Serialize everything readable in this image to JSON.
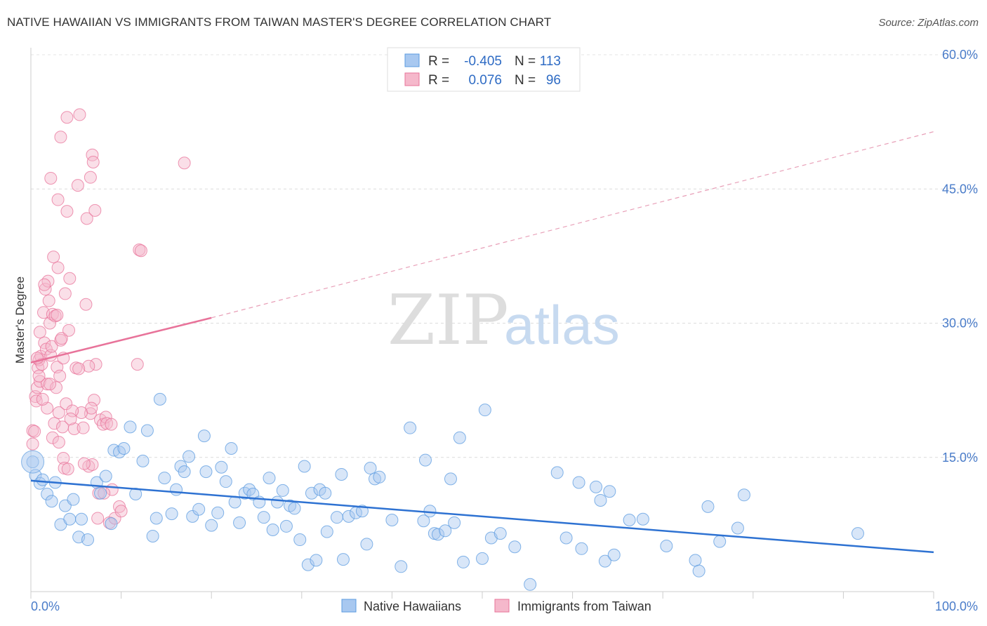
{
  "title": "NATIVE HAWAIIAN VS IMMIGRANTS FROM TAIWAN MASTER'S DEGREE CORRELATION CHART",
  "source": "Source: ZipAtlas.com",
  "watermark": {
    "zip": "ZIP",
    "atlas": "atlas"
  },
  "legend": {
    "rows": [
      {
        "r_label": "R =",
        "r_value": "-0.405",
        "n_label": "N =",
        "n_value": "113",
        "color": "#a8c8f0"
      },
      {
        "r_label": "R =",
        "r_value": "0.076",
        "n_label": "N =",
        "n_value": "96",
        "color": "#f5b8cb"
      }
    ]
  },
  "bottom_legend": [
    {
      "label": "Native Hawaiians",
      "color": "#a8c8f0"
    },
    {
      "label": "Immigrants from Taiwan",
      "color": "#f5b8cb"
    }
  ],
  "chart_data": {
    "type": "scatter",
    "title": "NATIVE HAWAIIAN VS IMMIGRANTS FROM TAIWAN MASTER'S DEGREE CORRELATION CHART",
    "xlabel": "",
    "ylabel": "Master's Degree",
    "xlim": [
      0,
      100
    ],
    "ylim": [
      0,
      60
    ],
    "x_tick_labels": [
      "0.0%",
      "100.0%"
    ],
    "y_ticks": [
      15,
      30,
      45,
      60
    ],
    "y_tick_labels": [
      "15.0%",
      "30.0%",
      "45.0%",
      "60.0%"
    ],
    "grid": true,
    "legend_position": "top-center",
    "series": [
      {
        "name": "Native Hawaiians",
        "color": "#5b9be0",
        "fill": "#a8c8f0",
        "r": -0.405,
        "n": 113,
        "trend": {
          "x": [
            0,
            100
          ],
          "y": [
            12.4,
            4.4
          ],
          "dashed_from": null
        },
        "points": [
          [
            0.2,
            14.5
          ],
          [
            0.5,
            13.0
          ],
          [
            1.0,
            12.1
          ],
          [
            1.3,
            12.5
          ],
          [
            1.8,
            10.9
          ],
          [
            2.3,
            10.1
          ],
          [
            2.7,
            12.2
          ],
          [
            3.3,
            7.5
          ],
          [
            3.8,
            9.6
          ],
          [
            4.3,
            8.1
          ],
          [
            4.7,
            10.3
          ],
          [
            5.3,
            6.1
          ],
          [
            5.6,
            8.1
          ],
          [
            6.3,
            5.8
          ],
          [
            7.3,
            12.2
          ],
          [
            7.7,
            11.0
          ],
          [
            8.3,
            12.9
          ],
          [
            8.9,
            7.6
          ],
          [
            9.2,
            15.8
          ],
          [
            9.8,
            15.6
          ],
          [
            10.3,
            16.0
          ],
          [
            11.0,
            18.4
          ],
          [
            11.6,
            10.9
          ],
          [
            12.4,
            14.6
          ],
          [
            12.9,
            18.0
          ],
          [
            13.5,
            6.2
          ],
          [
            13.9,
            8.2
          ],
          [
            14.3,
            21.5
          ],
          [
            14.8,
            12.7
          ],
          [
            15.6,
            8.7
          ],
          [
            16.1,
            11.4
          ],
          [
            16.6,
            14.0
          ],
          [
            17.0,
            13.4
          ],
          [
            17.5,
            15.1
          ],
          [
            17.9,
            8.4
          ],
          [
            18.6,
            9.2
          ],
          [
            19.2,
            17.4
          ],
          [
            19.4,
            13.4
          ],
          [
            20.0,
            7.4
          ],
          [
            20.7,
            8.8
          ],
          [
            21.1,
            13.9
          ],
          [
            21.6,
            12.3
          ],
          [
            22.2,
            16.0
          ],
          [
            22.6,
            10.0
          ],
          [
            23.1,
            7.7
          ],
          [
            23.7,
            11.0
          ],
          [
            24.2,
            11.4
          ],
          [
            24.6,
            10.9
          ],
          [
            25.3,
            10.0
          ],
          [
            25.8,
            8.3
          ],
          [
            26.4,
            12.7
          ],
          [
            26.8,
            6.9
          ],
          [
            27.3,
            10.0
          ],
          [
            27.9,
            11.3
          ],
          [
            28.3,
            7.3
          ],
          [
            28.7,
            9.6
          ],
          [
            29.2,
            9.3
          ],
          [
            29.8,
            5.8
          ],
          [
            30.3,
            14.0
          ],
          [
            30.7,
            3.0
          ],
          [
            31.1,
            11.0
          ],
          [
            31.6,
            3.5
          ],
          [
            32.0,
            11.4
          ],
          [
            32.6,
            11.0
          ],
          [
            32.8,
            6.7
          ],
          [
            33.9,
            8.3
          ],
          [
            34.4,
            13.1
          ],
          [
            34.6,
            3.6
          ],
          [
            35.2,
            8.4
          ],
          [
            36.0,
            8.8
          ],
          [
            36.7,
            9.0
          ],
          [
            37.2,
            5.3
          ],
          [
            37.6,
            13.8
          ],
          [
            38.1,
            12.6
          ],
          [
            38.6,
            12.8
          ],
          [
            40.0,
            8.0
          ],
          [
            41.0,
            2.8
          ],
          [
            42.0,
            18.3
          ],
          [
            43.5,
            7.9
          ],
          [
            43.7,
            14.7
          ],
          [
            44.2,
            9.0
          ],
          [
            44.7,
            6.5
          ],
          [
            45.1,
            6.4
          ],
          [
            45.9,
            6.8
          ],
          [
            46.5,
            12.6
          ],
          [
            46.9,
            7.7
          ],
          [
            47.5,
            17.2
          ],
          [
            47.9,
            3.3
          ],
          [
            50.0,
            3.7
          ],
          [
            50.3,
            20.3
          ],
          [
            51.0,
            6.0
          ],
          [
            52.0,
            6.5
          ],
          [
            53.6,
            5.0
          ],
          [
            55.3,
            0.8
          ],
          [
            58.3,
            13.3
          ],
          [
            59.3,
            6.0
          ],
          [
            60.7,
            12.2
          ],
          [
            61.0,
            4.8
          ],
          [
            62.6,
            11.7
          ],
          [
            63.1,
            10.2
          ],
          [
            63.6,
            3.4
          ],
          [
            64.1,
            11.2
          ],
          [
            64.6,
            4.1
          ],
          [
            66.3,
            8.0
          ],
          [
            67.8,
            8.1
          ],
          [
            70.4,
            5.1
          ],
          [
            73.6,
            3.5
          ],
          [
            74.0,
            2.3
          ],
          [
            76.3,
            5.6
          ],
          [
            78.3,
            7.1
          ],
          [
            79.0,
            10.8
          ],
          [
            91.6,
            6.5
          ],
          [
            75.0,
            9.5
          ]
        ]
      },
      {
        "name": "Immigrants from Taiwan",
        "color": "#e8739a",
        "fill": "#f5b8cb",
        "r": 0.076,
        "n": 96,
        "trend": {
          "x": [
            0,
            20,
            100
          ],
          "y": [
            25.6,
            30.6,
            51.4
          ],
          "dashed_from": 20
        },
        "points": [
          [
            0.2,
            18.0
          ],
          [
            0.2,
            16.5
          ],
          [
            0.4,
            17.9
          ],
          [
            0.5,
            21.8
          ],
          [
            0.6,
            21.3
          ],
          [
            0.7,
            22.8
          ],
          [
            0.8,
            25.0
          ],
          [
            0.9,
            25.9
          ],
          [
            1.0,
            23.5
          ],
          [
            1.1,
            26.3
          ],
          [
            1.2,
            25.4
          ],
          [
            1.4,
            31.2
          ],
          [
            1.5,
            27.8
          ],
          [
            1.6,
            33.8
          ],
          [
            1.7,
            27.1
          ],
          [
            1.8,
            23.2
          ],
          [
            1.8,
            20.5
          ],
          [
            1.9,
            34.7
          ],
          [
            2.0,
            32.5
          ],
          [
            2.1,
            30.0
          ],
          [
            2.2,
            26.4
          ],
          [
            2.3,
            27.4
          ],
          [
            2.4,
            31.0
          ],
          [
            2.5,
            37.4
          ],
          [
            2.6,
            18.8
          ],
          [
            2.7,
            30.8
          ],
          [
            2.8,
            22.8
          ],
          [
            2.9,
            25.1
          ],
          [
            3.0,
            36.2
          ],
          [
            3.1,
            20.0
          ],
          [
            3.2,
            24.1
          ],
          [
            3.3,
            28.1
          ],
          [
            3.4,
            28.3
          ],
          [
            3.5,
            18.4
          ],
          [
            3.6,
            14.9
          ],
          [
            3.7,
            13.8
          ],
          [
            3.8,
            33.3
          ],
          [
            3.9,
            21.0
          ],
          [
            4.0,
            42.5
          ],
          [
            4.1,
            13.7
          ],
          [
            4.2,
            29.2
          ],
          [
            4.3,
            35.0
          ],
          [
            2.2,
            46.2
          ],
          [
            3.0,
            43.8
          ],
          [
            3.3,
            50.8
          ],
          [
            4.0,
            53.0
          ],
          [
            5.2,
            45.4
          ],
          [
            5.4,
            53.3
          ],
          [
            6.1,
            32.1
          ],
          [
            6.4,
            14.0
          ],
          [
            6.6,
            19.9
          ],
          [
            6.8,
            14.2
          ],
          [
            7.0,
            21.4
          ],
          [
            7.2,
            25.4
          ],
          [
            7.5,
            11.0
          ],
          [
            7.7,
            19.2
          ],
          [
            8.0,
            18.7
          ],
          [
            8.3,
            19.5
          ],
          [
            6.4,
            25.2
          ],
          [
            6.7,
            20.5
          ],
          [
            5.0,
            25.0
          ],
          [
            5.6,
            20.0
          ],
          [
            5.9,
            14.3
          ],
          [
            4.6,
            20.2
          ],
          [
            4.8,
            18.2
          ],
          [
            6.2,
            41.7
          ],
          [
            6.6,
            46.3
          ],
          [
            6.8,
            48.8
          ],
          [
            6.9,
            48.0
          ],
          [
            7.1,
            42.6
          ],
          [
            8.4,
            18.8
          ],
          [
            8.7,
            7.7
          ],
          [
            9.0,
            11.4
          ],
          [
            9.3,
            8.2
          ],
          [
            9.8,
            9.5
          ],
          [
            10.0,
            9.0
          ],
          [
            11.8,
            25.4
          ],
          [
            12.0,
            38.2
          ],
          [
            12.2,
            38.1
          ],
          [
            17.0,
            47.9
          ],
          [
            2.4,
            17.2
          ],
          [
            3.1,
            16.7
          ],
          [
            1.3,
            21.5
          ],
          [
            0.9,
            24.1
          ],
          [
            0.7,
            26.1
          ],
          [
            1.0,
            29.0
          ],
          [
            2.1,
            23.2
          ],
          [
            2.9,
            30.9
          ],
          [
            3.6,
            26.1
          ],
          [
            4.4,
            19.3
          ],
          [
            5.3,
            24.9
          ],
          [
            5.8,
            18.3
          ],
          [
            7.4,
            8.2
          ],
          [
            8.1,
            11.0
          ],
          [
            8.9,
            18.7
          ],
          [
            1.5,
            34.3
          ]
        ]
      }
    ]
  }
}
